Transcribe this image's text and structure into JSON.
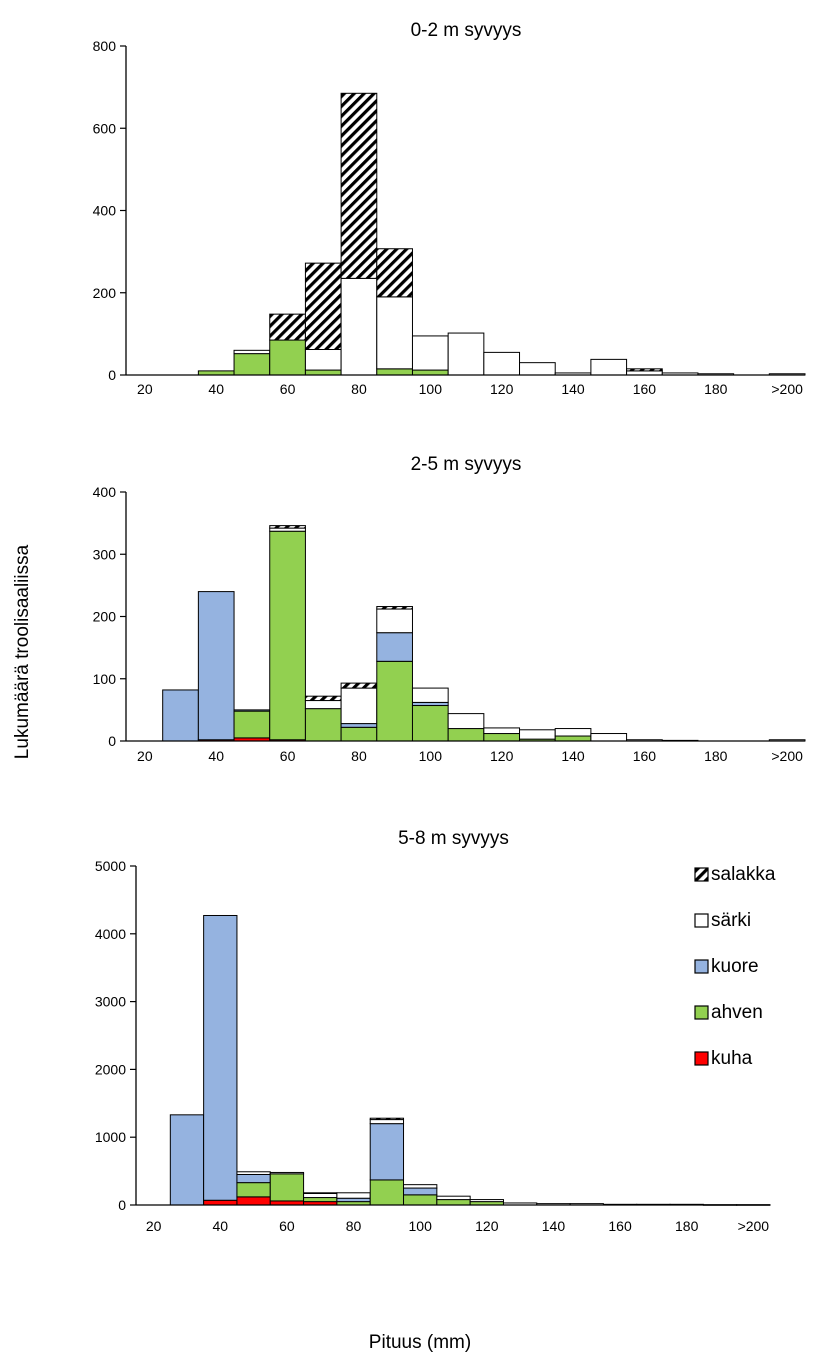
{
  "figure": {
    "ylabel": "Lukumäärä troolisaaliissa",
    "xlabel": "Pituus (mm)"
  },
  "legend": {
    "placement": "right of bottom panel",
    "entries": [
      {
        "key": "salakka",
        "label": "salakka",
        "fill": "hatch"
      },
      {
        "key": "sarki",
        "label": "särki",
        "fill": "#ffffff"
      },
      {
        "key": "kuore",
        "label": "kuore",
        "fill": "#95b3e0"
      },
      {
        "key": "ahven",
        "label": "ahven",
        "fill": "#92d050"
      },
      {
        "key": "kuha",
        "label": "kuha",
        "fill": "#ff0000"
      }
    ]
  },
  "chart_data": [
    {
      "type": "bar",
      "stacked": true,
      "title": "0-2 m syvyys",
      "xlabel": "",
      "ylabel": "",
      "ylim": [
        0,
        800
      ],
      "yticks": [
        0,
        200,
        400,
        600,
        800
      ],
      "xticks": [
        "20",
        "40",
        "60",
        "80",
        "100",
        "120",
        "140",
        "160",
        "180",
        ">200"
      ],
      "categories": [
        "20",
        "30",
        "40",
        "50",
        "60",
        "70",
        "80",
        "90",
        "100",
        "110",
        "120",
        "130",
        "140",
        "150",
        "160",
        "170",
        "180",
        "190",
        ">200"
      ],
      "series": [
        {
          "name": "kuha",
          "values": [
            0,
            0,
            0,
            0,
            0,
            0,
            0,
            0,
            0,
            0,
            0,
            0,
            0,
            0,
            0,
            0,
            0,
            0,
            0
          ]
        },
        {
          "name": "ahven",
          "values": [
            0,
            0,
            10,
            52,
            85,
            12,
            0,
            15,
            12,
            0,
            0,
            0,
            0,
            0,
            0,
            0,
            0,
            0,
            0
          ]
        },
        {
          "name": "kuore",
          "values": [
            0,
            0,
            0,
            0,
            0,
            0,
            0,
            0,
            0,
            0,
            0,
            0,
            0,
            0,
            0,
            0,
            0,
            0,
            0
          ]
        },
        {
          "name": "särki",
          "values": [
            0,
            0,
            0,
            8,
            0,
            50,
            235,
            175,
            83,
            102,
            55,
            30,
            5,
            38,
            10,
            5,
            3,
            0,
            3
          ]
        },
        {
          "name": "salakka",
          "values": [
            0,
            0,
            0,
            0,
            63,
            210,
            450,
            117,
            0,
            0,
            0,
            0,
            0,
            0,
            5,
            0,
            0,
            0,
            0
          ]
        }
      ]
    },
    {
      "type": "bar",
      "stacked": true,
      "title": "2-5 m syvyys",
      "xlabel": "",
      "ylabel": "",
      "ylim": [
        0,
        400
      ],
      "yticks": [
        0,
        100,
        200,
        300,
        400
      ],
      "xticks": [
        "20",
        "40",
        "60",
        "80",
        "100",
        "120",
        "140",
        "160",
        "180",
        ">200"
      ],
      "categories": [
        "20",
        "30",
        "40",
        "50",
        "60",
        "70",
        "80",
        "90",
        "100",
        "110",
        "120",
        "130",
        "140",
        "150",
        "160",
        "170",
        "180",
        "190",
        ">200"
      ],
      "series": [
        {
          "name": "kuha",
          "values": [
            0,
            0,
            2,
            5,
            2,
            0,
            0,
            0,
            0,
            0,
            0,
            0,
            0,
            0,
            0,
            0,
            0,
            0,
            0
          ]
        },
        {
          "name": "ahven",
          "values": [
            0,
            0,
            0,
            43,
            335,
            52,
            22,
            128,
            57,
            20,
            12,
            3,
            8,
            0,
            0,
            0,
            0,
            0,
            0
          ]
        },
        {
          "name": "kuore",
          "values": [
            0,
            82,
            238,
            2,
            0,
            0,
            6,
            46,
            5,
            0,
            0,
            0,
            0,
            0,
            0,
            0,
            0,
            0,
            0
          ]
        },
        {
          "name": "särki",
          "values": [
            0,
            0,
            0,
            0,
            5,
            13,
            57,
            38,
            23,
            24,
            9,
            15,
            12,
            12,
            2,
            1,
            0,
            0,
            2
          ]
        },
        {
          "name": "salakka",
          "values": [
            0,
            0,
            0,
            0,
            4,
            7,
            8,
            4,
            0,
            0,
            0,
            0,
            0,
            0,
            0,
            0,
            0,
            0,
            0
          ]
        }
      ]
    },
    {
      "type": "bar",
      "stacked": true,
      "title": "5-8 m syvyys",
      "xlabel": "",
      "ylabel": "",
      "ylim": [
        0,
        5000
      ],
      "yticks": [
        0,
        1000,
        2000,
        3000,
        4000,
        5000
      ],
      "xticks": [
        "20",
        "40",
        "60",
        "80",
        "100",
        "120",
        "140",
        "160",
        "180",
        ">200"
      ],
      "categories": [
        "20",
        "30",
        "40",
        "50",
        "60",
        "70",
        "80",
        "90",
        "100",
        "110",
        "120",
        "130",
        "140",
        "150",
        "160",
        "170",
        "180",
        "190",
        ">200"
      ],
      "series": [
        {
          "name": "kuha",
          "values": [
            0,
            0,
            70,
            120,
            60,
            50,
            0,
            0,
            0,
            0,
            0,
            0,
            0,
            0,
            0,
            0,
            0,
            0,
            0
          ]
        },
        {
          "name": "ahven",
          "values": [
            0,
            0,
            0,
            210,
            400,
            60,
            50,
            370,
            150,
            80,
            50,
            0,
            0,
            0,
            0,
            0,
            0,
            0,
            0
          ]
        },
        {
          "name": "kuore",
          "values": [
            0,
            1330,
            4200,
            120,
            0,
            0,
            50,
            830,
            100,
            0,
            0,
            0,
            0,
            0,
            0,
            0,
            0,
            0,
            0
          ]
        },
        {
          "name": "särki",
          "values": [
            0,
            0,
            0,
            40,
            20,
            60,
            80,
            60,
            50,
            50,
            30,
            30,
            20,
            20,
            10,
            10,
            10,
            5,
            5
          ]
        },
        {
          "name": "salakka",
          "values": [
            0,
            0,
            0,
            0,
            0,
            10,
            0,
            20,
            0,
            0,
            0,
            0,
            0,
            0,
            0,
            0,
            0,
            0,
            0
          ]
        }
      ]
    }
  ]
}
